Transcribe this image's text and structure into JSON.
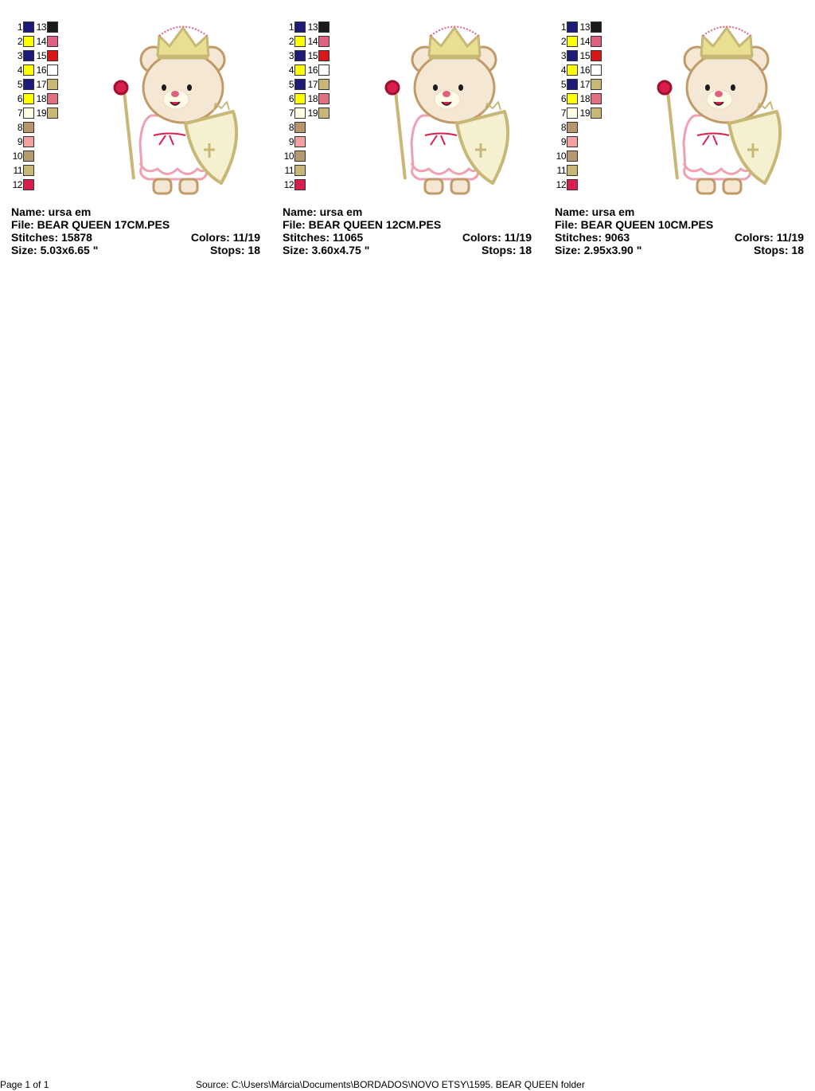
{
  "designs": [
    {
      "swatches": [
        {
          "number": "1",
          "color": "#1c1c78"
        },
        {
          "number": "2",
          "color": "#ffff00"
        },
        {
          "number": "3",
          "color": "#1c1c78"
        },
        {
          "number": "4",
          "color": "#ffff00"
        },
        {
          "number": "5",
          "color": "#1c1c78"
        },
        {
          "number": "6",
          "color": "#ffff00"
        },
        {
          "number": "7",
          "color": "#fffde2"
        },
        {
          "number": "8",
          "color": "#b8966a"
        },
        {
          "number": "9",
          "color": "#f4a0a0"
        },
        {
          "number": "10",
          "color": "#b89a70"
        },
        {
          "number": "11",
          "color": "#c8b878"
        },
        {
          "number": "12",
          "color": "#d81e4a"
        },
        {
          "number": "13",
          "color": "#1a1a1a"
        },
        {
          "number": "14",
          "color": "#e06080"
        },
        {
          "number": "15",
          "color": "#d81818"
        },
        {
          "number": "16",
          "color": "#ffffff"
        },
        {
          "number": "17",
          "color": "#c8b878"
        },
        {
          "number": "18",
          "color": "#e07080"
        },
        {
          "number": "19",
          "color": "#c8b878"
        }
      ],
      "name": "Name: ursa em",
      "file": "File: BEAR QUEEN 17CM.PES",
      "stitches": "Stitches: 15878",
      "colors": "Colors: 11/19",
      "size": "Size: 5.03x6.65 \"",
      "stops": "Stops: 18"
    },
    {
      "swatches": [
        {
          "number": "1",
          "color": "#1c1c78"
        },
        {
          "number": "2",
          "color": "#ffff00"
        },
        {
          "number": "3",
          "color": "#1c1c78"
        },
        {
          "number": "4",
          "color": "#ffff00"
        },
        {
          "number": "5",
          "color": "#1c1c78"
        },
        {
          "number": "6",
          "color": "#ffff00"
        },
        {
          "number": "7",
          "color": "#fffde2"
        },
        {
          "number": "8",
          "color": "#b8966a"
        },
        {
          "number": "9",
          "color": "#f4a0a0"
        },
        {
          "number": "10",
          "color": "#b89a70"
        },
        {
          "number": "11",
          "color": "#c8b878"
        },
        {
          "number": "12",
          "color": "#d81e4a"
        },
        {
          "number": "13",
          "color": "#1a1a1a"
        },
        {
          "number": "14",
          "color": "#e06080"
        },
        {
          "number": "15",
          "color": "#d81818"
        },
        {
          "number": "16",
          "color": "#ffffff"
        },
        {
          "number": "17",
          "color": "#c8b878"
        },
        {
          "number": "18",
          "color": "#e07080"
        },
        {
          "number": "19",
          "color": "#c8b878"
        }
      ],
      "name": "Name: ursa em",
      "file": "File: BEAR QUEEN 12CM.PES",
      "stitches": "Stitches: 11065",
      "colors": "Colors: 11/19",
      "size": "Size: 3.60x4.75 \"",
      "stops": "Stops: 18"
    },
    {
      "swatches": [
        {
          "number": "1",
          "color": "#1c1c78"
        },
        {
          "number": "2",
          "color": "#ffff00"
        },
        {
          "number": "3",
          "color": "#1c1c78"
        },
        {
          "number": "4",
          "color": "#ffff00"
        },
        {
          "number": "5",
          "color": "#1c1c78"
        },
        {
          "number": "6",
          "color": "#ffff00"
        },
        {
          "number": "7",
          "color": "#fffde2"
        },
        {
          "number": "8",
          "color": "#b8966a"
        },
        {
          "number": "9",
          "color": "#f4a0a0"
        },
        {
          "number": "10",
          "color": "#b89a70"
        },
        {
          "number": "11",
          "color": "#c8b878"
        },
        {
          "number": "12",
          "color": "#d81e4a"
        },
        {
          "number": "13",
          "color": "#1a1a1a"
        },
        {
          "number": "14",
          "color": "#e06080"
        },
        {
          "number": "15",
          "color": "#d81818"
        },
        {
          "number": "16",
          "color": "#ffffff"
        },
        {
          "number": "17",
          "color": "#c8b878"
        },
        {
          "number": "18",
          "color": "#e07080"
        },
        {
          "number": "19",
          "color": "#c8b878"
        }
      ],
      "name": "Name: ursa em",
      "file": "File: BEAR QUEEN 10CM.PES",
      "stitches": "Stitches: 9063",
      "colors": "Colors: 11/19",
      "size": "Size: 2.95x3.90 \"",
      "stops": "Stops: 18"
    }
  ],
  "footer": {
    "page": "Page 1 of 1",
    "source": "Source: C:\\Users\\Márcia\\Documents\\BORDADOS\\NOVO ETSY\\1595. BEAR QUEEN folder"
  }
}
